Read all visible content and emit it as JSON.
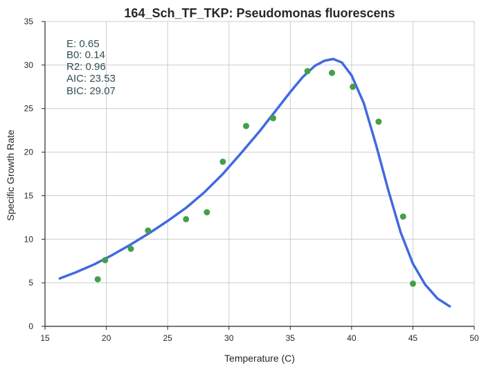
{
  "chart_data": {
    "type": "scatter",
    "title": "164_Sch_TF_TKP: Pseudomonas fluorescens",
    "xlabel": "Temperature (C)",
    "ylabel": "Specific Growth Rate",
    "xlim": [
      15,
      50
    ],
    "ylim": [
      0,
      35
    ],
    "xticks": [
      15,
      20,
      25,
      30,
      35,
      40,
      45,
      50
    ],
    "yticks": [
      0,
      5,
      10,
      15,
      20,
      25,
      30,
      35
    ],
    "grid": true,
    "points": {
      "color": "#43a047",
      "x": [
        19.3,
        19.9,
        22.0,
        23.4,
        26.5,
        28.2,
        29.5,
        31.4,
        33.6,
        36.4,
        38.4,
        40.1,
        42.2,
        44.2,
        45.0
      ],
      "y": [
        5.4,
        7.6,
        8.9,
        11.0,
        12.3,
        13.1,
        18.9,
        23.0,
        23.9,
        29.3,
        29.1,
        27.5,
        23.5,
        12.6,
        4.9
      ]
    },
    "fit": {
      "color": "#4169e1",
      "x": [
        16.2,
        17.5,
        19.0,
        20.5,
        22.0,
        23.5,
        25.0,
        26.5,
        28.0,
        29.5,
        31.0,
        32.5,
        34.0,
        35.0,
        36.0,
        37.0,
        37.8,
        38.5,
        39.2,
        40.0,
        41.0,
        42.0,
        43.0,
        44.0,
        45.0,
        46.0,
        47.0,
        48.0
      ],
      "y": [
        5.5,
        6.2,
        7.1,
        8.2,
        9.4,
        10.7,
        12.1,
        13.6,
        15.4,
        17.5,
        19.9,
        22.4,
        25.1,
        26.9,
        28.6,
        29.9,
        30.5,
        30.7,
        30.3,
        28.8,
        25.6,
        20.8,
        15.6,
        10.8,
        7.2,
        4.8,
        3.2,
        2.3
      ]
    },
    "stats": [
      "E:  0.65",
      "B0:  0.14",
      "R2:  0.96",
      "AIC: 23.53",
      "BIC: 29.07"
    ]
  }
}
